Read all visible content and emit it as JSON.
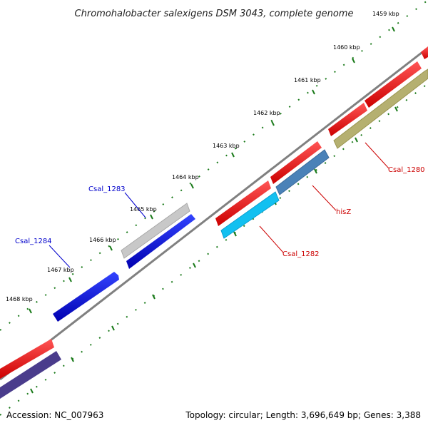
{
  "title": "Chromohalobacter salexigens DSM 3043, complete genome",
  "footer": {
    "accession": "Accession: NC_007963",
    "summary": "Topology: circular; Length: 3,696,649 bp; Genes: 3,388"
  },
  "tick_labels": [
    "1459 kbp",
    "1460 kbp",
    "1461 kbp",
    "1462 kbp",
    "1463 kbp",
    "1464 kbp",
    "1465 kbp",
    "1466 kbp",
    "1467 kbp",
    "1468 kbp"
  ],
  "gene_labels": [
    {
      "text": "Csal_1280",
      "color": "#cc0000"
    },
    {
      "text": "hisZ",
      "color": "#cc0000"
    },
    {
      "text": "Csal_1282",
      "color": "#cc0000"
    },
    {
      "text": "Csal_1283",
      "color": "#0000cc"
    },
    {
      "text": "Csal_1284",
      "color": "#0000cc"
    }
  ],
  "colors": {
    "backbone": "#808080",
    "tick": "#1a7a1a",
    "forward_cds": "#ee1111",
    "forward_feature_blue": "#0011dd",
    "gray_feature": "#c8c8c8",
    "olive_feature": "#b5b070",
    "steelblue_feature": "#4a82b8",
    "cyan_feature": "#12c0f0",
    "purple_feature": "#4a3c8c"
  }
}
